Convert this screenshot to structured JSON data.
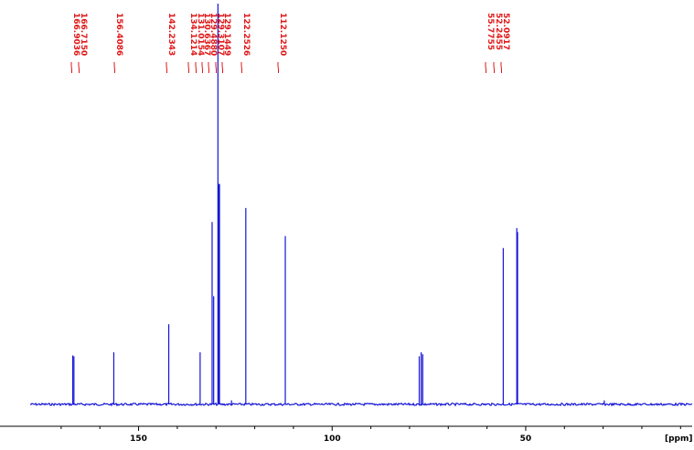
{
  "chart_data": {
    "type": "line",
    "xlabel": "[ppm]",
    "ylabel": "",
    "title": "",
    "x_reversed": true,
    "xlim": [
      178,
      7
    ],
    "ylim": [
      0,
      100
    ],
    "grid": false,
    "x_ticks": [
      150,
      100,
      50
    ],
    "peak_labels": [
      "166.9036",
      "166.7150",
      "156.4086",
      "142.2343",
      "134.1214",
      "131.0154",
      "130.6367",
      "129.4880",
      "129.3107",
      "129.1449",
      "122.2526",
      "112.1250",
      "55.7755",
      "52.2455",
      "52.0917"
    ],
    "peaks": [
      {
        "ppm": 167.0,
        "intensity": 12.2
      },
      {
        "ppm": 166.7,
        "intensity": 12.0
      },
      {
        "ppm": 156.4,
        "intensity": 13.0
      },
      {
        "ppm": 142.2,
        "intensity": 20.0
      },
      {
        "ppm": 134.1,
        "intensity": 13.0
      },
      {
        "ppm": 131.0,
        "intensity": 45.5
      },
      {
        "ppm": 130.6,
        "intensity": 27.0
      },
      {
        "ppm": 129.5,
        "intensity": 100.0
      },
      {
        "ppm": 129.3,
        "intensity": 55.0
      },
      {
        "ppm": 129.1,
        "intensity": 55.0
      },
      {
        "ppm": 126.0,
        "intensity": 1.0
      },
      {
        "ppm": 122.3,
        "intensity": 49.0
      },
      {
        "ppm": 112.1,
        "intensity": 42.0
      },
      {
        "ppm": 77.5,
        "intensity": 12.0
      },
      {
        "ppm": 77.0,
        "intensity": 13.0
      },
      {
        "ppm": 76.6,
        "intensity": 12.5
      },
      {
        "ppm": 55.8,
        "intensity": 39.0
      },
      {
        "ppm": 52.3,
        "intensity": 44.0
      },
      {
        "ppm": 52.1,
        "intensity": 43.0
      },
      {
        "ppm": 29.7,
        "intensity": 1.0
      }
    ],
    "colors": {
      "spectrum": "#1515d6",
      "labels": "#e01818",
      "axis": "#000000"
    }
  }
}
